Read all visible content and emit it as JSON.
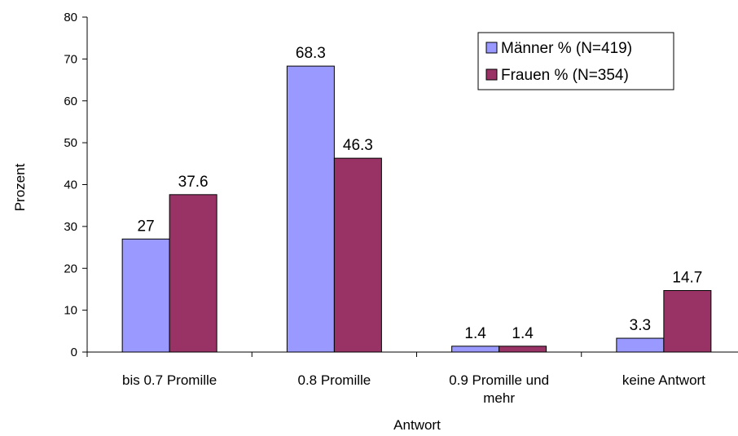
{
  "chart_data": {
    "type": "bar",
    "categories": [
      "bis 0.7 Promille",
      "0.8 Promille",
      "0.9 Promille und mehr",
      "keine Antwort"
    ],
    "category_lines": [
      [
        "bis 0.7 Promille"
      ],
      [
        "0.8 Promille"
      ],
      [
        "0.9 Promille und",
        "mehr"
      ],
      [
        "keine Antwort"
      ]
    ],
    "series": [
      {
        "name": "Männer % (N=419)",
        "values": [
          27,
          68.3,
          1.4,
          3.3
        ],
        "color": "#9999ff",
        "labels": [
          "27",
          "68.3",
          "1.4",
          "3.3"
        ]
      },
      {
        "name": "Frauen % (N=354)",
        "values": [
          37.6,
          46.3,
          1.4,
          14.7
        ],
        "color": "#993366",
        "labels": [
          "37.6",
          "46.3",
          "1.4",
          "14.7"
        ]
      }
    ],
    "xlabel": "Antwort",
    "ylabel": "Prozent",
    "ylim": [
      0,
      80
    ],
    "yticks": [
      0,
      10,
      20,
      30,
      40,
      50,
      60,
      70,
      80
    ],
    "grid": false,
    "legend_position": "top-right"
  }
}
